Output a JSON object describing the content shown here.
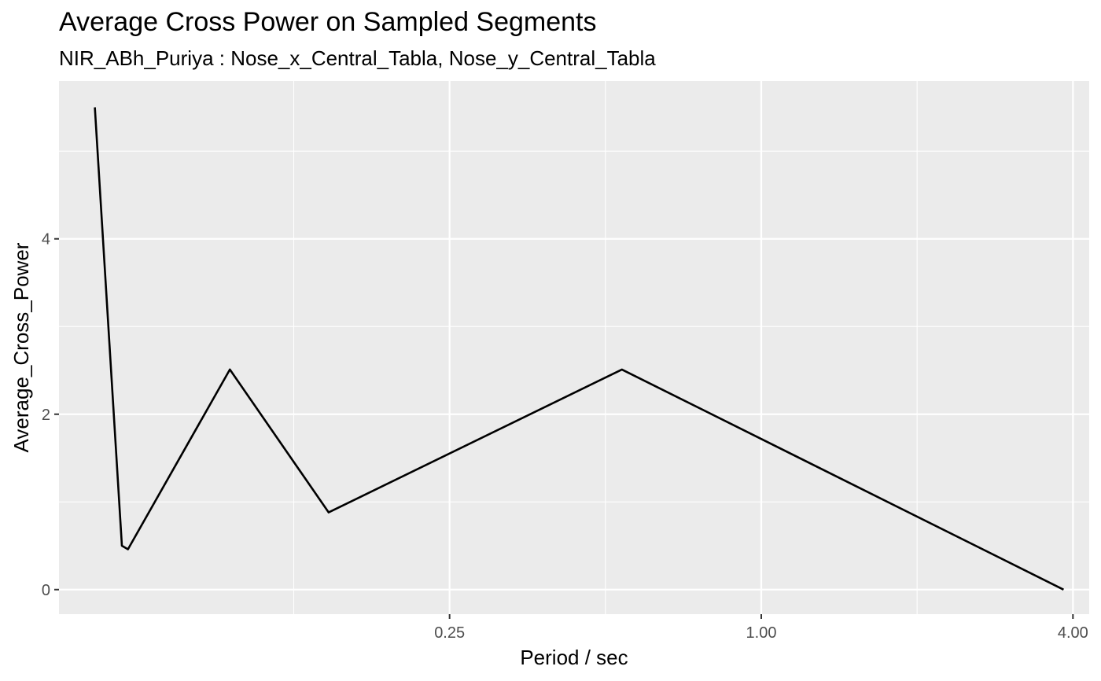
{
  "chart_data": {
    "type": "line",
    "title": "Average Cross Power on Sampled Segments",
    "subtitle": "NIR_ABh_Puriya : Nose_x_Central_Tabla, Nose_y_Central_Tabla",
    "xlabel": "Period / sec",
    "ylabel": "Average_Cross_Power",
    "x_scale": "log2",
    "xlim": [
      0.044,
      4.3
    ],
    "ylim": [
      -0.28,
      5.8
    ],
    "x_ticks": [
      0.25,
      1.0,
      4.0
    ],
    "x_tick_labels": [
      "0.25",
      "1.00",
      "4.00"
    ],
    "x_minor_ticks": [
      0.125,
      0.5,
      2.0
    ],
    "y_ticks": [
      0,
      2,
      4
    ],
    "y_tick_labels": [
      "0",
      "2",
      "4"
    ],
    "y_minor_ticks": [
      1,
      3,
      5
    ],
    "grid": true,
    "panel_background": "#ebebeb",
    "line_color": "#000000",
    "series": [
      {
        "x": [
          0.0516,
          0.0582,
          0.0598,
          0.0941,
          0.146,
          0.538,
          3.836
        ],
        "y": [
          5.5,
          0.5,
          0.46,
          2.51,
          0.88,
          2.51,
          0.0
        ]
      }
    ]
  }
}
